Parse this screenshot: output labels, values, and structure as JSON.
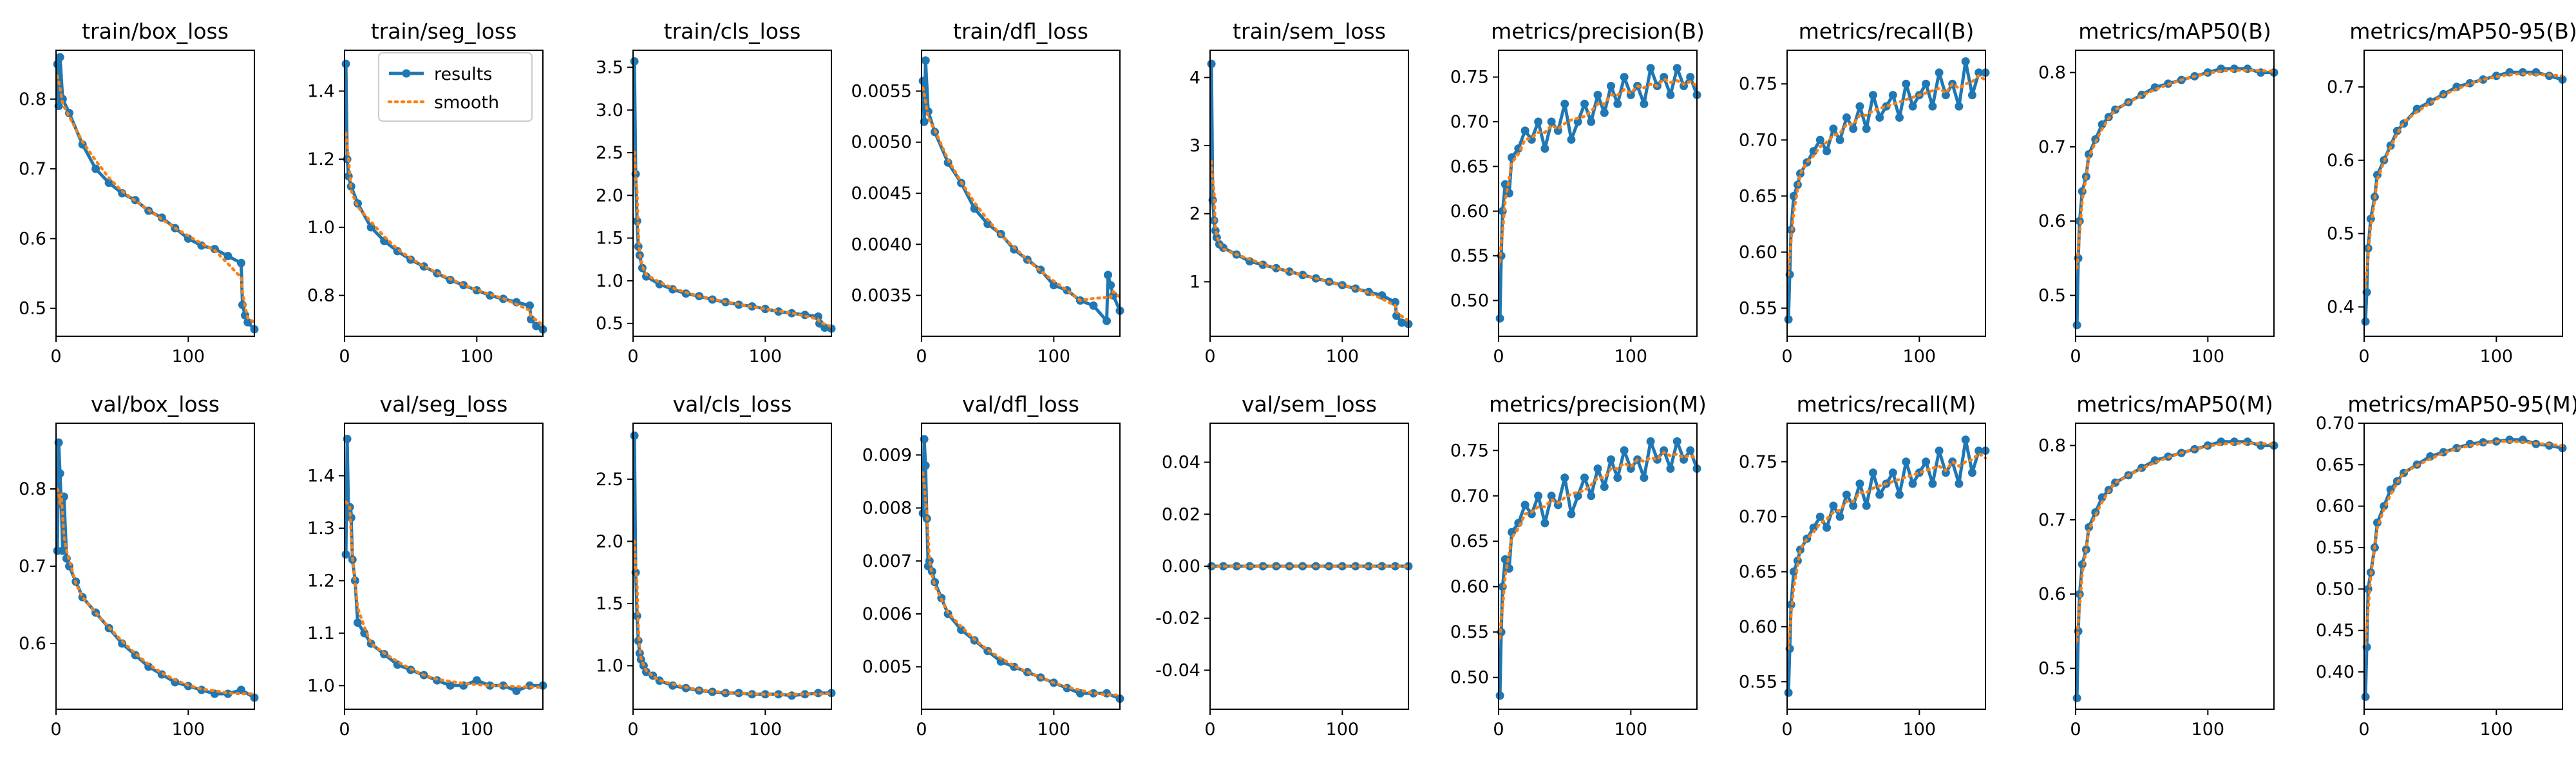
{
  "figure": {
    "layout": "2 rows x 9 panels",
    "x_max_epoch": 150
  },
  "legend": {
    "results_label": "results",
    "smooth_label": "smooth",
    "location": "upper right of train/seg_loss"
  },
  "colors": {
    "results": "#1f77b4",
    "smooth": "#ff7f0e",
    "axes": "#000000",
    "background": "#ffffff"
  },
  "chart_data": [
    {
      "type": "line",
      "title": "train/box_loss",
      "xlim": [
        0,
        150
      ],
      "ylim": [
        0.46,
        0.87
      ],
      "xticks": [
        0,
        100
      ],
      "yticks": [
        0.5,
        0.6,
        0.7,
        0.8
      ],
      "decimals": 1,
      "x": [
        1,
        2,
        3,
        5,
        10,
        20,
        30,
        40,
        50,
        60,
        70,
        80,
        90,
        100,
        110,
        120,
        130,
        140,
        141,
        143,
        145,
        150
      ],
      "values": [
        0.85,
        0.79,
        0.86,
        0.8,
        0.78,
        0.735,
        0.7,
        0.68,
        0.665,
        0.655,
        0.64,
        0.63,
        0.615,
        0.6,
        0.59,
        0.585,
        0.575,
        0.565,
        0.505,
        0.49,
        0.48,
        0.47
      ]
    },
    {
      "type": "line",
      "title": "train/seg_loss",
      "xlim": [
        0,
        150
      ],
      "ylim": [
        0.68,
        1.52
      ],
      "xticks": [
        0,
        100
      ],
      "yticks": [
        0.8,
        1.0,
        1.2,
        1.4
      ],
      "decimals": 1,
      "x": [
        1,
        2,
        3,
        5,
        10,
        20,
        30,
        40,
        50,
        60,
        70,
        80,
        90,
        100,
        110,
        120,
        130,
        140,
        141,
        145,
        150
      ],
      "values": [
        1.48,
        1.2,
        1.15,
        1.12,
        1.07,
        1.0,
        0.96,
        0.93,
        0.905,
        0.885,
        0.865,
        0.845,
        0.83,
        0.815,
        0.8,
        0.79,
        0.78,
        0.77,
        0.73,
        0.71,
        0.7
      ]
    },
    {
      "type": "line",
      "title": "train/cls_loss",
      "xlim": [
        0,
        150
      ],
      "ylim": [
        0.35,
        3.7
      ],
      "xticks": [
        0,
        100
      ],
      "yticks": [
        0.5,
        1.0,
        1.5,
        2.0,
        2.5,
        3.0,
        3.5
      ],
      "decimals": 1,
      "x": [
        1,
        2,
        3,
        4,
        5,
        7,
        10,
        20,
        30,
        40,
        50,
        60,
        70,
        80,
        90,
        100,
        110,
        120,
        130,
        140,
        141,
        145,
        150
      ],
      "values": [
        3.57,
        2.25,
        1.7,
        1.4,
        1.3,
        1.15,
        1.05,
        0.96,
        0.9,
        0.85,
        0.82,
        0.78,
        0.75,
        0.72,
        0.7,
        0.67,
        0.64,
        0.62,
        0.6,
        0.58,
        0.5,
        0.45,
        0.44
      ]
    },
    {
      "type": "line",
      "title": "train/dfl_loss",
      "xlim": [
        0,
        150
      ],
      "ylim": [
        0.0031,
        0.0059
      ],
      "xticks": [
        0,
        100
      ],
      "yticks": [
        0.0035,
        0.004,
        0.0045,
        0.005,
        0.0055
      ],
      "decimals": 4,
      "x": [
        1,
        2,
        3,
        5,
        10,
        20,
        30,
        40,
        50,
        60,
        70,
        80,
        90,
        100,
        110,
        120,
        130,
        140,
        141,
        143,
        145,
        150
      ],
      "values": [
        0.0056,
        0.0052,
        0.0058,
        0.0053,
        0.0051,
        0.0048,
        0.0046,
        0.00435,
        0.0042,
        0.0041,
        0.00395,
        0.00385,
        0.00375,
        0.0036,
        0.00355,
        0.00345,
        0.0034,
        0.00325,
        0.0037,
        0.0036,
        0.0035,
        0.00335
      ]
    },
    {
      "type": "line",
      "title": "train/sem_loss",
      "xlim": [
        0,
        150
      ],
      "ylim": [
        0.2,
        4.4
      ],
      "xticks": [
        0,
        100
      ],
      "yticks": [
        1,
        2,
        3,
        4
      ],
      "decimals": 0,
      "x": [
        1,
        2,
        3,
        4,
        5,
        7,
        10,
        20,
        30,
        40,
        50,
        60,
        70,
        80,
        90,
        100,
        110,
        120,
        130,
        140,
        141,
        145,
        150
      ],
      "values": [
        4.2,
        2.2,
        1.9,
        1.75,
        1.65,
        1.55,
        1.5,
        1.4,
        1.3,
        1.25,
        1.2,
        1.15,
        1.1,
        1.05,
        1.0,
        0.95,
        0.9,
        0.85,
        0.8,
        0.7,
        0.5,
        0.4,
        0.38
      ]
    },
    {
      "type": "line",
      "title": "metrics/precision(B)",
      "xlim": [
        0,
        150
      ],
      "ylim": [
        0.46,
        0.78
      ],
      "xticks": [
        0,
        100
      ],
      "yticks": [
        0.5,
        0.55,
        0.6,
        0.65,
        0.7,
        0.75
      ],
      "decimals": 2,
      "x": [
        1,
        2,
        3,
        5,
        8,
        10,
        15,
        20,
        25,
        30,
        35,
        40,
        45,
        50,
        55,
        60,
        65,
        70,
        75,
        80,
        85,
        90,
        95,
        100,
        105,
        110,
        115,
        120,
        125,
        130,
        135,
        140,
        145,
        150
      ],
      "values": [
        0.48,
        0.55,
        0.6,
        0.63,
        0.62,
        0.66,
        0.67,
        0.69,
        0.68,
        0.7,
        0.67,
        0.7,
        0.69,
        0.72,
        0.68,
        0.7,
        0.72,
        0.7,
        0.73,
        0.71,
        0.74,
        0.72,
        0.75,
        0.73,
        0.74,
        0.72,
        0.76,
        0.74,
        0.75,
        0.73,
        0.76,
        0.74,
        0.75,
        0.73
      ]
    },
    {
      "type": "line",
      "title": "metrics/recall(B)",
      "xlim": [
        0,
        150
      ],
      "ylim": [
        0.525,
        0.78
      ],
      "xticks": [
        0,
        100
      ],
      "yticks": [
        0.55,
        0.6,
        0.65,
        0.7,
        0.75
      ],
      "decimals": 2,
      "x": [
        1,
        2,
        3,
        5,
        8,
        10,
        15,
        20,
        25,
        30,
        35,
        40,
        45,
        50,
        55,
        60,
        65,
        70,
        75,
        80,
        85,
        90,
        95,
        100,
        105,
        110,
        115,
        120,
        125,
        130,
        135,
        140,
        145,
        150
      ],
      "values": [
        0.54,
        0.58,
        0.62,
        0.65,
        0.66,
        0.67,
        0.68,
        0.69,
        0.7,
        0.69,
        0.71,
        0.7,
        0.72,
        0.71,
        0.73,
        0.71,
        0.74,
        0.72,
        0.73,
        0.74,
        0.72,
        0.75,
        0.73,
        0.74,
        0.75,
        0.73,
        0.76,
        0.74,
        0.75,
        0.73,
        0.77,
        0.74,
        0.76,
        0.76
      ]
    },
    {
      "type": "line",
      "title": "metrics/mAP50(B)",
      "xlim": [
        0,
        150
      ],
      "ylim": [
        0.445,
        0.83
      ],
      "xticks": [
        0,
        100
      ],
      "yticks": [
        0.5,
        0.6,
        0.7,
        0.8
      ],
      "decimals": 1,
      "x": [
        1,
        2,
        3,
        5,
        8,
        10,
        15,
        20,
        25,
        30,
        40,
        50,
        60,
        70,
        80,
        90,
        100,
        110,
        120,
        130,
        140,
        150
      ],
      "values": [
        0.46,
        0.55,
        0.6,
        0.64,
        0.66,
        0.69,
        0.71,
        0.73,
        0.74,
        0.75,
        0.76,
        0.77,
        0.78,
        0.785,
        0.79,
        0.795,
        0.8,
        0.805,
        0.805,
        0.805,
        0.8,
        0.8
      ]
    },
    {
      "type": "line",
      "title": "metrics/mAP50-95(B)",
      "xlim": [
        0,
        150
      ],
      "ylim": [
        0.36,
        0.75
      ],
      "xticks": [
        0,
        100
      ],
      "yticks": [
        0.4,
        0.5,
        0.6,
        0.7
      ],
      "decimals": 1,
      "x": [
        1,
        2,
        3,
        5,
        8,
        10,
        15,
        20,
        25,
        30,
        40,
        50,
        60,
        70,
        80,
        90,
        100,
        110,
        120,
        130,
        140,
        150
      ],
      "values": [
        0.38,
        0.42,
        0.48,
        0.52,
        0.55,
        0.58,
        0.6,
        0.62,
        0.64,
        0.65,
        0.67,
        0.68,
        0.69,
        0.7,
        0.705,
        0.71,
        0.715,
        0.72,
        0.72,
        0.72,
        0.715,
        0.71
      ]
    },
    {
      "type": "line",
      "title": "val/box_loss",
      "xlim": [
        0,
        150
      ],
      "ylim": [
        0.515,
        0.885
      ],
      "xticks": [
        0,
        100
      ],
      "yticks": [
        0.6,
        0.7,
        0.8
      ],
      "decimals": 1,
      "x": [
        1,
        2,
        3,
        4,
        5,
        6,
        8,
        10,
        15,
        20,
        30,
        40,
        50,
        60,
        70,
        80,
        90,
        100,
        110,
        120,
        130,
        140,
        150
      ],
      "values": [
        0.72,
        0.86,
        0.82,
        0.78,
        0.72,
        0.79,
        0.71,
        0.7,
        0.68,
        0.66,
        0.64,
        0.62,
        0.6,
        0.585,
        0.57,
        0.56,
        0.55,
        0.545,
        0.54,
        0.535,
        0.535,
        0.54,
        0.53
      ]
    },
    {
      "type": "line",
      "title": "val/seg_loss",
      "xlim": [
        0,
        150
      ],
      "ylim": [
        0.955,
        1.5
      ],
      "xticks": [
        0,
        100
      ],
      "yticks": [
        1.0,
        1.1,
        1.2,
        1.3,
        1.4
      ],
      "decimals": 1,
      "x": [
        1,
        2,
        3,
        4,
        5,
        6,
        8,
        10,
        15,
        20,
        30,
        40,
        50,
        60,
        70,
        80,
        90,
        100,
        110,
        120,
        130,
        140,
        150
      ],
      "values": [
        1.25,
        1.47,
        1.33,
        1.34,
        1.32,
        1.24,
        1.2,
        1.12,
        1.1,
        1.08,
        1.06,
        1.04,
        1.03,
        1.02,
        1.01,
        1.0,
        1.0,
        1.01,
        1.0,
        1.0,
        0.99,
        1.0,
        1.0
      ]
    },
    {
      "type": "line",
      "title": "val/cls_loss",
      "xlim": [
        0,
        150
      ],
      "ylim": [
        0.65,
        2.95
      ],
      "xticks": [
        0,
        100
      ],
      "yticks": [
        1.0,
        1.5,
        2.0,
        2.5
      ],
      "decimals": 1,
      "x": [
        1,
        2,
        3,
        4,
        5,
        6,
        8,
        10,
        15,
        20,
        30,
        40,
        50,
        60,
        70,
        80,
        90,
        100,
        110,
        120,
        130,
        140,
        150
      ],
      "values": [
        2.85,
        1.75,
        1.4,
        1.2,
        1.1,
        1.05,
        1.0,
        0.95,
        0.92,
        0.88,
        0.84,
        0.82,
        0.8,
        0.79,
        0.78,
        0.78,
        0.77,
        0.77,
        0.77,
        0.76,
        0.77,
        0.78,
        0.78
      ]
    },
    {
      "type": "line",
      "title": "val/dfl_loss",
      "xlim": [
        0,
        150
      ],
      "ylim": [
        0.0042,
        0.0096
      ],
      "xticks": [
        0,
        100
      ],
      "yticks": [
        0.005,
        0.006,
        0.007,
        0.008,
        0.009
      ],
      "decimals": 3,
      "x": [
        1,
        2,
        3,
        4,
        5,
        6,
        8,
        10,
        15,
        20,
        30,
        40,
        50,
        60,
        70,
        80,
        90,
        100,
        110,
        120,
        130,
        140,
        150
      ],
      "values": [
        0.0079,
        0.0093,
        0.0088,
        0.0078,
        0.0069,
        0.007,
        0.0068,
        0.0066,
        0.0063,
        0.006,
        0.0057,
        0.0055,
        0.0053,
        0.0051,
        0.005,
        0.0049,
        0.0048,
        0.0047,
        0.0046,
        0.0045,
        0.0045,
        0.0045,
        0.0044
      ]
    },
    {
      "type": "line",
      "title": "val/sem_loss",
      "xlim": [
        0,
        150
      ],
      "ylim": [
        -0.055,
        0.055
      ],
      "xticks": [
        0,
        100
      ],
      "yticks": [
        -0.04,
        -0.02,
        0.0,
        0.02,
        0.04
      ],
      "decimals": 2,
      "x": [
        1,
        10,
        20,
        30,
        40,
        50,
        60,
        70,
        80,
        90,
        100,
        110,
        120,
        130,
        140,
        150
      ],
      "values": [
        0,
        0,
        0,
        0,
        0,
        0,
        0,
        0,
        0,
        0,
        0,
        0,
        0,
        0,
        0,
        0
      ]
    },
    {
      "type": "line",
      "title": "metrics/precision(M)",
      "xlim": [
        0,
        150
      ],
      "ylim": [
        0.465,
        0.78
      ],
      "xticks": [
        0,
        100
      ],
      "yticks": [
        0.5,
        0.55,
        0.6,
        0.65,
        0.7,
        0.75
      ],
      "decimals": 2,
      "x": [
        1,
        2,
        3,
        5,
        8,
        10,
        15,
        20,
        25,
        30,
        35,
        40,
        45,
        50,
        55,
        60,
        65,
        70,
        75,
        80,
        85,
        90,
        95,
        100,
        105,
        110,
        115,
        120,
        125,
        130,
        135,
        140,
        145,
        150
      ],
      "values": [
        0.48,
        0.55,
        0.6,
        0.63,
        0.62,
        0.66,
        0.67,
        0.69,
        0.68,
        0.7,
        0.67,
        0.7,
        0.69,
        0.72,
        0.68,
        0.7,
        0.72,
        0.7,
        0.73,
        0.71,
        0.74,
        0.72,
        0.75,
        0.73,
        0.74,
        0.72,
        0.76,
        0.74,
        0.75,
        0.73,
        0.76,
        0.74,
        0.75,
        0.73
      ]
    },
    {
      "type": "line",
      "title": "metrics/recall(M)",
      "xlim": [
        0,
        150
      ],
      "ylim": [
        0.525,
        0.785
      ],
      "xticks": [
        0,
        100
      ],
      "yticks": [
        0.55,
        0.6,
        0.65,
        0.7,
        0.75
      ],
      "decimals": 2,
      "x": [
        1,
        2,
        3,
        5,
        8,
        10,
        15,
        20,
        25,
        30,
        35,
        40,
        45,
        50,
        55,
        60,
        65,
        70,
        75,
        80,
        85,
        90,
        95,
        100,
        105,
        110,
        115,
        120,
        125,
        130,
        135,
        140,
        145,
        150
      ],
      "values": [
        0.54,
        0.58,
        0.62,
        0.65,
        0.66,
        0.67,
        0.68,
        0.69,
        0.7,
        0.69,
        0.71,
        0.7,
        0.72,
        0.71,
        0.73,
        0.71,
        0.74,
        0.72,
        0.73,
        0.74,
        0.72,
        0.75,
        0.73,
        0.74,
        0.75,
        0.73,
        0.76,
        0.74,
        0.75,
        0.73,
        0.77,
        0.74,
        0.76,
        0.76
      ]
    },
    {
      "type": "line",
      "title": "metrics/mAP50(M)",
      "xlim": [
        0,
        150
      ],
      "ylim": [
        0.445,
        0.83
      ],
      "xticks": [
        0,
        100
      ],
      "yticks": [
        0.5,
        0.6,
        0.7,
        0.8
      ],
      "decimals": 1,
      "x": [
        1,
        2,
        3,
        5,
        8,
        10,
        15,
        20,
        25,
        30,
        40,
        50,
        60,
        70,
        80,
        90,
        100,
        110,
        120,
        130,
        140,
        150
      ],
      "values": [
        0.46,
        0.55,
        0.6,
        0.64,
        0.66,
        0.69,
        0.71,
        0.73,
        0.74,
        0.75,
        0.76,
        0.77,
        0.78,
        0.785,
        0.79,
        0.795,
        0.8,
        0.805,
        0.805,
        0.805,
        0.8,
        0.8
      ]
    },
    {
      "type": "line",
      "title": "metrics/mAP50-95(M)",
      "xlim": [
        0,
        150
      ],
      "ylim": [
        0.355,
        0.7
      ],
      "xticks": [
        0,
        100
      ],
      "yticks": [
        0.4,
        0.45,
        0.5,
        0.55,
        0.6,
        0.65,
        0.7
      ],
      "decimals": 2,
      "x": [
        1,
        2,
        3,
        5,
        8,
        10,
        15,
        20,
        25,
        30,
        40,
        50,
        60,
        70,
        80,
        90,
        100,
        110,
        120,
        130,
        140,
        150
      ],
      "values": [
        0.37,
        0.43,
        0.5,
        0.52,
        0.55,
        0.58,
        0.6,
        0.62,
        0.63,
        0.64,
        0.65,
        0.66,
        0.665,
        0.67,
        0.675,
        0.677,
        0.678,
        0.68,
        0.68,
        0.675,
        0.673,
        0.67
      ]
    }
  ]
}
